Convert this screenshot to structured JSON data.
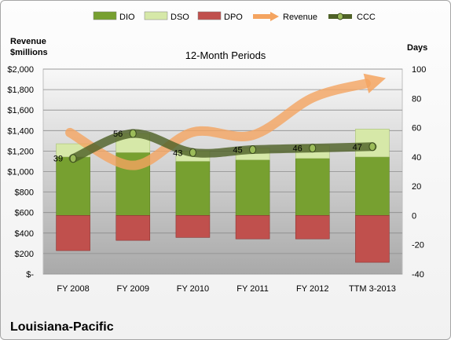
{
  "chart_data": {
    "type": "bar",
    "title": "12-Month Periods",
    "company": "Louisiana-Pacific",
    "left_axis_title_line1": "Revenue",
    "left_axis_title_line2": "$millions",
    "right_axis_title": "Days",
    "categories": [
      "FY 2008",
      "FY 2009",
      "FY 2010",
      "FY 2011",
      "FY 2012",
      "TTM 3-2013"
    ],
    "left_ylim": [
      0,
      2000
    ],
    "left_ticks": [
      "$-",
      "$200",
      "$400",
      "$600",
      "$800",
      "$1,000",
      "$1,200",
      "$1,400",
      "$1,600",
      "$1,800",
      "$2,000"
    ],
    "right_ylim": [
      -40,
      100
    ],
    "right_ticks": [
      "-40",
      "-20",
      "0",
      "20",
      "40",
      "60",
      "80",
      "100"
    ],
    "legend_position": "top",
    "series": [
      {
        "name": "DIO",
        "axis": "right",
        "kind": "stacked-bar",
        "color": "#77a030",
        "values": [
          40,
          43,
          37,
          38,
          39,
          40
        ]
      },
      {
        "name": "DSO",
        "axis": "right",
        "kind": "stacked-bar",
        "color": "#d6e8a8",
        "values": [
          9,
          13,
          7,
          8,
          9,
          19
        ]
      },
      {
        "name": "DPO",
        "axis": "right",
        "kind": "negative-bar",
        "color": "#c0504d",
        "values": [
          -24,
          -17,
          -15,
          -16,
          -16,
          -32
        ]
      },
      {
        "name": "Revenue",
        "axis": "left",
        "kind": "arrow-line",
        "color": "#f4a460",
        "values": [
          1380,
          1060,
          1385,
          1355,
          1720,
          1860
        ]
      },
      {
        "name": "CCC",
        "axis": "right",
        "kind": "line",
        "color": "#4f6228",
        "values": [
          39,
          56,
          43,
          45,
          46,
          47
        ]
      }
    ],
    "ccc_labels": [
      "39",
      "56",
      "43",
      "45",
      "46",
      "47"
    ]
  }
}
